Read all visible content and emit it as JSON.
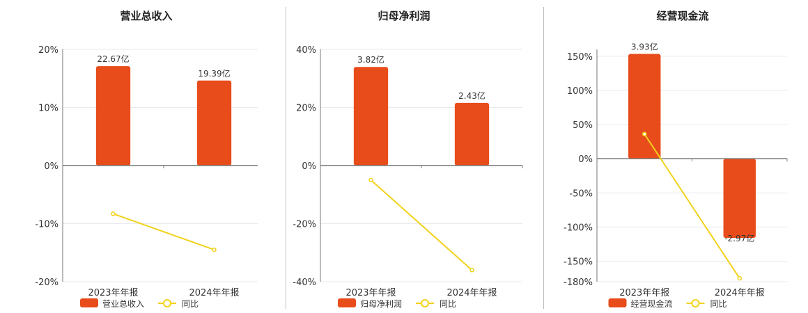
{
  "colors": {
    "bar": "#E84C1B",
    "line": "#F2D21B",
    "grid": "#e8eaf0",
    "axis": "#777777"
  },
  "chart_data": [
    {
      "type": "bar",
      "title": "营业总收入",
      "categories": [
        "2023年年报",
        "2024年年报"
      ],
      "series": [
        {
          "name": "营业总收入",
          "type": "bar",
          "values": [
            22.67,
            19.39
          ],
          "labels": [
            "22.67亿",
            "19.39亿"
          ]
        },
        {
          "name": "同比",
          "type": "line",
          "values": [
            -8.3,
            -14.5
          ]
        }
      ],
      "ylim": [
        -20,
        20
      ],
      "yticks": [
        20,
        10,
        0,
        -10,
        -20
      ],
      "ytick_labels": [
        "20%",
        "10%",
        "0%",
        "-10%",
        "-20%"
      ],
      "bar_scale_max": 26.5
    },
    {
      "type": "bar",
      "title": "归母净利润",
      "categories": [
        "2023年年报",
        "2024年年报"
      ],
      "series": [
        {
          "name": "归母净利润",
          "type": "bar",
          "values": [
            3.82,
            2.43
          ],
          "labels": [
            "3.82亿",
            "2.43亿"
          ]
        },
        {
          "name": "同比",
          "type": "line",
          "values": [
            -5.0,
            -36.0
          ]
        }
      ],
      "ylim": [
        -40,
        40
      ],
      "yticks": [
        40,
        20,
        0,
        -20,
        -40
      ],
      "ytick_labels": [
        "40%",
        "20%",
        "0%",
        "-20%",
        "-40%"
      ],
      "bar_scale_max": 4.5
    },
    {
      "type": "bar",
      "title": "经营现金流",
      "categories": [
        "2023年年报",
        "2024年年报"
      ],
      "series": [
        {
          "name": "经营现金流",
          "type": "bar",
          "values": [
            3.93,
            -2.97
          ],
          "labels": [
            "3.93亿",
            "-2.97亿"
          ]
        },
        {
          "name": "同比",
          "type": "line",
          "values": [
            36,
            -175
          ]
        }
      ],
      "ylim": [
        -180,
        160
      ],
      "yticks": [
        150,
        100,
        50,
        0,
        -50,
        -100,
        -150,
        -180
      ],
      "ytick_labels": [
        "150%",
        "100%",
        "50%",
        "0%",
        "-50%",
        "-100%",
        "-150%",
        "-180%"
      ],
      "bar_scale_max": 4.1
    }
  ]
}
